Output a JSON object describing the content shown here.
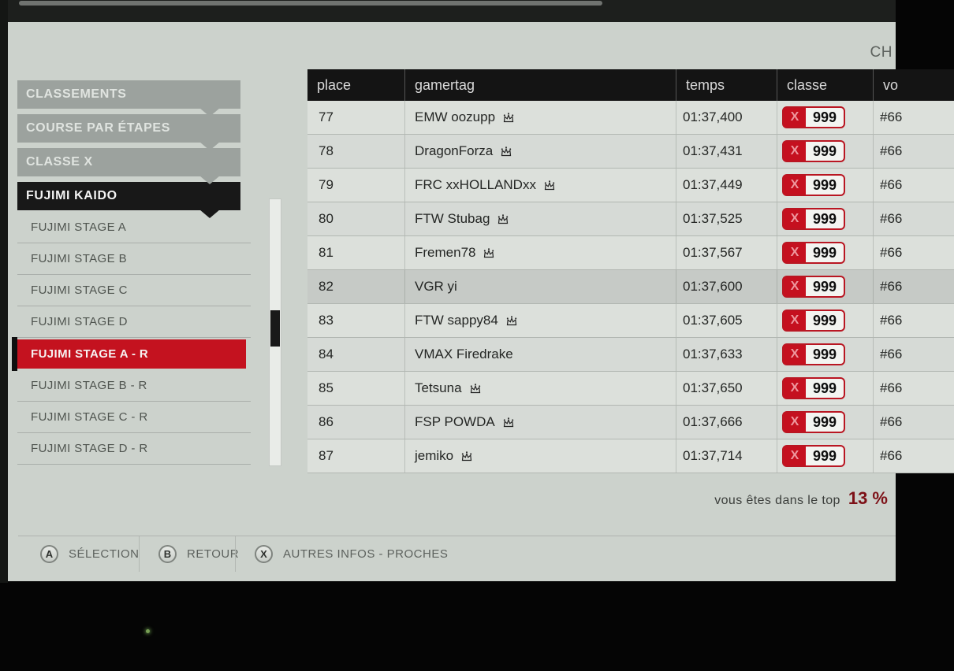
{
  "meta": {
    "top_right_label": "CH"
  },
  "sidebar": {
    "tabs": [
      {
        "label": "CLASSEMENTS",
        "variant": "gray"
      },
      {
        "label": "COURSE PAR ÉTAPES",
        "variant": "gray"
      },
      {
        "label": "CLASSE X",
        "variant": "gray"
      },
      {
        "label": "FUJIMI KAIDO",
        "variant": "dark"
      }
    ],
    "items": [
      {
        "label": "FUJIMI STAGE A",
        "selected": false
      },
      {
        "label": "FUJIMI STAGE B",
        "selected": false
      },
      {
        "label": "FUJIMI STAGE C",
        "selected": false
      },
      {
        "label": "FUJIMI STAGE D",
        "selected": false
      },
      {
        "label": "FUJIMI STAGE A - R",
        "selected": true
      },
      {
        "label": "FUJIMI STAGE B - R",
        "selected": false
      },
      {
        "label": "FUJIMI STAGE C - R",
        "selected": false
      },
      {
        "label": "FUJIMI STAGE D - R",
        "selected": false
      }
    ]
  },
  "table": {
    "columns": [
      "place",
      "gamertag",
      "temps",
      "classe",
      "vo"
    ],
    "rows": [
      {
        "place": "77",
        "gamertag": "EMW oozupp",
        "crown": true,
        "temps": "01:37,400",
        "classe_letter": "X",
        "classe_value": "999",
        "car": "#66",
        "highlight": false
      },
      {
        "place": "78",
        "gamertag": "DragonForza",
        "crown": true,
        "temps": "01:37,431",
        "classe_letter": "X",
        "classe_value": "999",
        "car": "#66",
        "highlight": false
      },
      {
        "place": "79",
        "gamertag": "FRC xxHOLLANDxx",
        "crown": true,
        "temps": "01:37,449",
        "classe_letter": "X",
        "classe_value": "999",
        "car": "#66",
        "highlight": false
      },
      {
        "place": "80",
        "gamertag": "FTW Stubag",
        "crown": true,
        "temps": "01:37,525",
        "classe_letter": "X",
        "classe_value": "999",
        "car": "#66",
        "highlight": false
      },
      {
        "place": "81",
        "gamertag": "Fremen78",
        "crown": true,
        "temps": "01:37,567",
        "classe_letter": "X",
        "classe_value": "999",
        "car": "#66",
        "highlight": false
      },
      {
        "place": "82",
        "gamertag": "VGR yi",
        "crown": false,
        "temps": "01:37,600",
        "classe_letter": "X",
        "classe_value": "999",
        "car": "#66",
        "highlight": true
      },
      {
        "place": "83",
        "gamertag": "FTW sappy84",
        "crown": true,
        "temps": "01:37,605",
        "classe_letter": "X",
        "classe_value": "999",
        "car": "#66",
        "highlight": false
      },
      {
        "place": "84",
        "gamertag": "VMAX Firedrake",
        "crown": false,
        "temps": "01:37,633",
        "classe_letter": "X",
        "classe_value": "999",
        "car": "#66",
        "highlight": false
      },
      {
        "place": "85",
        "gamertag": "Tetsuna",
        "crown": true,
        "temps": "01:37,650",
        "classe_letter": "X",
        "classe_value": "999",
        "car": "#66",
        "highlight": false
      },
      {
        "place": "86",
        "gamertag": "FSP POWDA",
        "crown": true,
        "temps": "01:37,666",
        "classe_letter": "X",
        "classe_value": "999",
        "car": "#66",
        "highlight": false
      },
      {
        "place": "87",
        "gamertag": "jemiko",
        "crown": true,
        "temps": "01:37,714",
        "classe_letter": "X",
        "classe_value": "999",
        "car": "#66",
        "highlight": false
      }
    ]
  },
  "status": {
    "prefix": "vous êtes dans le top",
    "value": "13 %"
  },
  "footer": {
    "buttons": [
      {
        "key": "A",
        "label": "SÉLECTION"
      },
      {
        "key": "B",
        "label": "RETOUR"
      },
      {
        "key": "X",
        "label": "AUTRES INFOS - PROCHES"
      }
    ]
  },
  "colors": {
    "accent_red": "#c4121f",
    "selected_row": "#c6cac6",
    "badge_border": "#b91622",
    "badge_letter_bg": "#c5101f",
    "badge_letter_color": "#ee979e",
    "top_value_color": "#7d1117",
    "table_header_bg": "#141414",
    "power_led": "#78a055"
  }
}
